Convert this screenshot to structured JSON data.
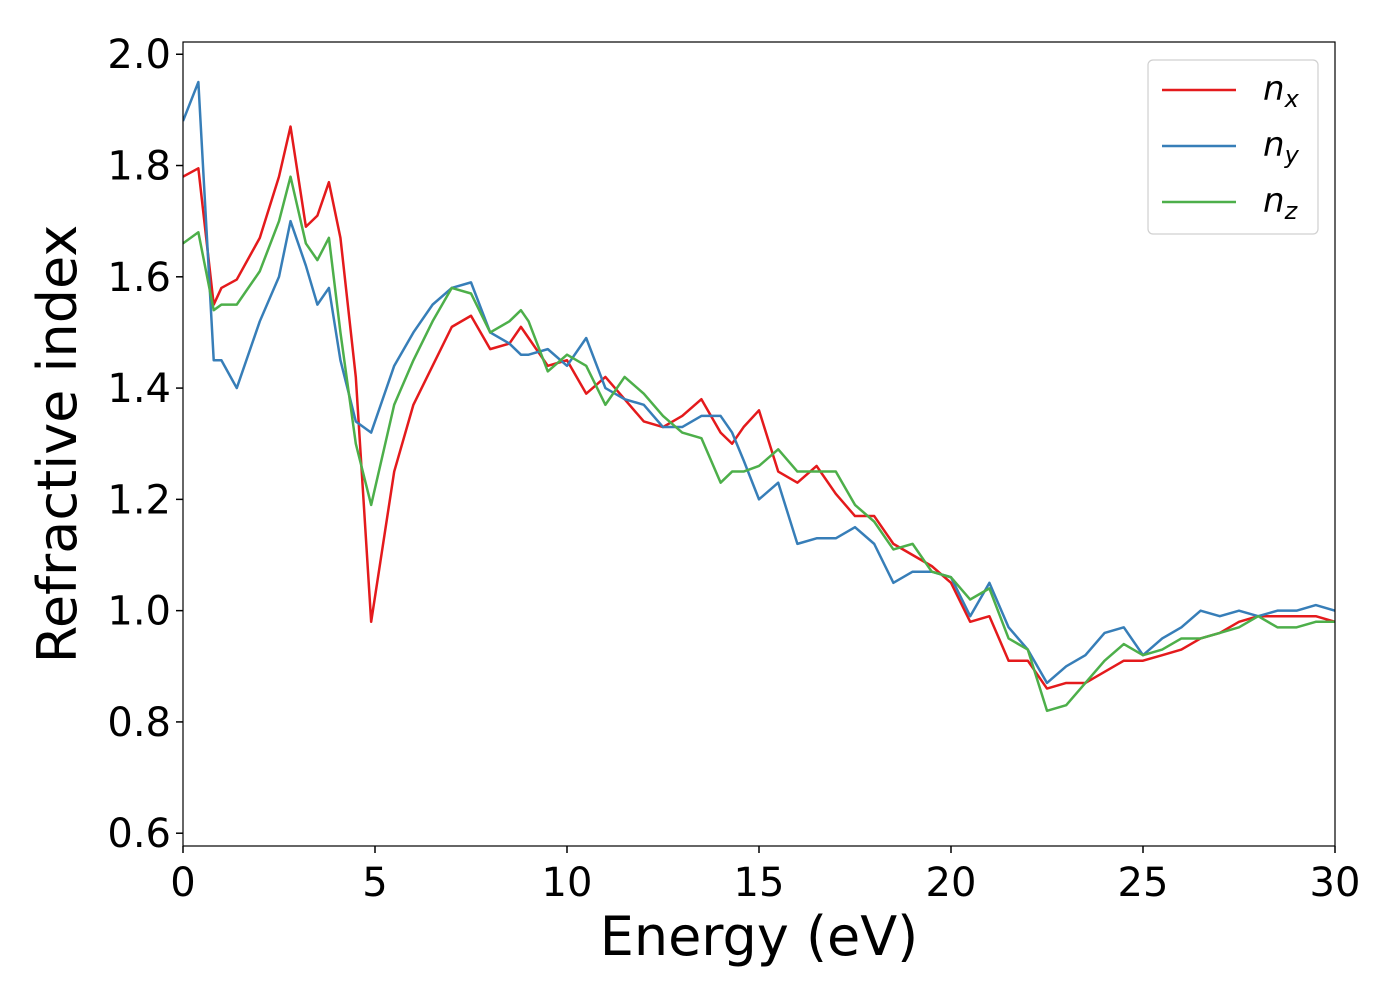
{
  "chart_data": {
    "type": "line",
    "xlabel": "Energy (eV)",
    "ylabel": "Refractive index",
    "x": [
      0,
      0.4,
      0.8,
      1.0,
      1.4,
      2.0,
      2.5,
      2.8,
      3.2,
      3.5,
      3.8,
      4.1,
      4.5,
      4.9,
      5.5,
      6,
      6.5,
      7,
      7.5,
      8,
      8.5,
      8.8,
      9,
      9.5,
      10,
      10.5,
      11,
      11.5,
      12,
      12.5,
      13,
      13.5,
      14,
      14.3,
      14.6,
      15,
      15.5,
      16,
      16.5,
      17,
      17.5,
      18,
      18.5,
      19,
      19.5,
      20,
      20.5,
      21,
      21.5,
      22,
      22.5,
      23,
      23.5,
      24,
      24.5,
      25,
      25.5,
      26,
      26.5,
      27,
      27.5,
      28,
      28.5,
      29,
      29.5,
      30
    ],
    "series": [
      {
        "name": "nx",
        "color": "#e41a1c",
        "values": [
          1.78,
          1.795,
          1.55,
          1.58,
          1.595,
          1.67,
          1.78,
          1.87,
          1.69,
          1.71,
          1.77,
          1.67,
          1.42,
          0.98,
          1.25,
          1.37,
          1.44,
          1.51,
          1.53,
          1.47,
          1.48,
          1.51,
          1.49,
          1.44,
          1.45,
          1.39,
          1.42,
          1.38,
          1.34,
          1.33,
          1.35,
          1.38,
          1.32,
          1.3,
          1.33,
          1.36,
          1.25,
          1.23,
          1.26,
          1.21,
          1.17,
          1.17,
          1.12,
          1.1,
          1.08,
          1.05,
          0.98,
          0.99,
          0.91,
          0.91,
          0.86,
          0.87,
          0.87,
          0.89,
          0.91,
          0.91,
          0.92,
          0.93,
          0.95,
          0.96,
          0.98,
          0.99,
          0.99,
          0.99,
          0.99,
          0.98
        ]
      },
      {
        "name": "ny",
        "color": "#377eb8",
        "values": [
          1.88,
          1.95,
          1.45,
          1.45,
          1.4,
          1.52,
          1.6,
          1.7,
          1.62,
          1.55,
          1.58,
          1.45,
          1.34,
          1.32,
          1.44,
          1.5,
          1.55,
          1.58,
          1.59,
          1.5,
          1.48,
          1.46,
          1.46,
          1.47,
          1.44,
          1.49,
          1.4,
          1.38,
          1.37,
          1.33,
          1.33,
          1.35,
          1.35,
          1.32,
          1.27,
          1.2,
          1.23,
          1.12,
          1.13,
          1.13,
          1.15,
          1.12,
          1.05,
          1.07,
          1.07,
          1.06,
          0.99,
          1.05,
          0.97,
          0.93,
          0.87,
          0.9,
          0.92,
          0.96,
          0.97,
          0.92,
          0.95,
          0.97,
          1.0,
          0.99,
          1.0,
          0.99,
          1.0,
          1.0,
          1.01,
          1.0
        ]
      },
      {
        "name": "nz",
        "color": "#4daf4a",
        "values": [
          1.66,
          1.68,
          1.54,
          1.55,
          1.55,
          1.61,
          1.7,
          1.78,
          1.66,
          1.63,
          1.67,
          1.5,
          1.3,
          1.19,
          1.37,
          1.45,
          1.52,
          1.58,
          1.57,
          1.5,
          1.52,
          1.54,
          1.52,
          1.43,
          1.46,
          1.44,
          1.37,
          1.42,
          1.39,
          1.35,
          1.32,
          1.31,
          1.23,
          1.25,
          1.25,
          1.26,
          1.29,
          1.25,
          1.25,
          1.25,
          1.19,
          1.16,
          1.11,
          1.12,
          1.07,
          1.06,
          1.02,
          1.04,
          0.95,
          0.93,
          0.82,
          0.83,
          0.87,
          0.91,
          0.94,
          0.92,
          0.93,
          0.95,
          0.95,
          0.96,
          0.97,
          0.99,
          0.97,
          0.97,
          0.98,
          0.98
        ]
      }
    ],
    "xlim": [
      0,
      30
    ],
    "xticks": [
      0,
      5,
      10,
      15,
      20,
      25,
      30
    ],
    "ylim": [
      0.577,
      2.022
    ],
    "yticks": [
      0.6,
      0.8,
      {
        "value": 1.0,
        "label": "1.0"
      },
      1.2,
      1.4,
      1.6,
      1.8,
      {
        "value": 2.0,
        "label": "2.0"
      }
    ],
    "legend": "upper right",
    "grid": false
  }
}
